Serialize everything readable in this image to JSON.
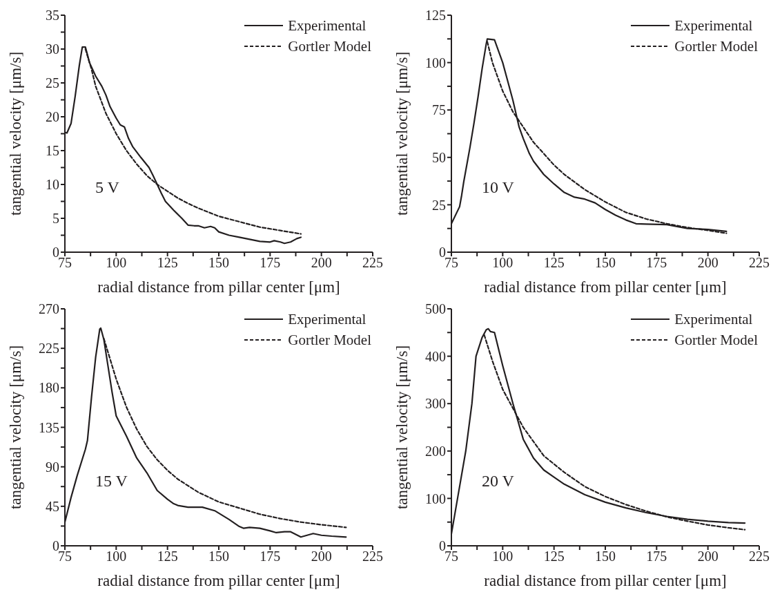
{
  "chart_data": [
    {
      "type": "line",
      "xlabel": "radial distance from pillar center [μm]",
      "ylabel": "tangential velocity [μm/s]",
      "annotations": [
        "5 V"
      ],
      "legend": "top right",
      "xlim": [
        75,
        225
      ],
      "xticks": [
        75,
        {
          "value": 87.5,
          "label": null
        },
        100,
        {
          "value": 112.5,
          "label": null
        },
        125,
        {
          "value": 137.5,
          "label": null
        },
        150,
        {
          "value": 162.5,
          "label": null
        },
        175,
        {
          "value": 187.5,
          "label": null
        },
        200,
        {
          "value": 212.5,
          "label": null
        },
        225
      ],
      "ylim": [
        0,
        35
      ],
      "yticks": [
        0,
        {
          "value": 2.5,
          "label": null
        },
        5,
        {
          "value": 7.5,
          "label": null
        },
        10,
        {
          "value": 12.5,
          "label": null
        },
        15,
        {
          "value": 17.5,
          "label": null
        },
        20,
        {
          "value": 22.5,
          "label": null
        },
        25,
        {
          "value": 27.5,
          "label": null
        },
        30,
        {
          "value": 32.5,
          "label": null
        },
        35
      ],
      "series": [
        {
          "name": "Experimental",
          "color": "#231f20",
          "line_style": "solid",
          "x": [
            75,
            76,
            78,
            80,
            82,
            83.5,
            85,
            87,
            90,
            93,
            95,
            97,
            100,
            102,
            104,
            106,
            108,
            112,
            116,
            118,
            120,
            122,
            124,
            128,
            132,
            135,
            138,
            140,
            143,
            146,
            148,
            150,
            155,
            160,
            165,
            170,
            175,
            177,
            180,
            182,
            185,
            188,
            190
          ],
          "values": [
            17.7,
            17.6,
            19,
            23,
            27.5,
            30.3,
            30.3,
            28,
            26,
            24.5,
            23.2,
            21.5,
            19.8,
            18.8,
            18.5,
            16.8,
            15.6,
            14,
            12.5,
            11.3,
            10,
            8.7,
            7.5,
            6.2,
            5,
            4,
            3.9,
            3.9,
            3.6,
            3.8,
            3.6,
            3,
            2.5,
            2.2,
            1.9,
            1.6,
            1.5,
            1.7,
            1.5,
            1.3,
            1.5,
            2,
            2.2
          ]
        },
        {
          "name": "Gortler Model",
          "color": "#231f20",
          "line_style": "dashed",
          "x": [
            85,
            88,
            90,
            95,
            100,
            105,
            110,
            115,
            120,
            125,
            130,
            135,
            140,
            145,
            150,
            160,
            170,
            180,
            190
          ],
          "values": [
            30,
            27,
            24.5,
            20.5,
            17.5,
            15,
            13,
            11.3,
            10,
            9,
            8,
            7.2,
            6.5,
            5.9,
            5.3,
            4.5,
            3.7,
            3.2,
            2.7
          ]
        }
      ]
    },
    {
      "type": "line",
      "xlabel": "radial distance from pillar center [μm]",
      "ylabel": "tangential velocity [μm/s]",
      "annotations": [
        "10 V"
      ],
      "legend": "top right",
      "xlim": [
        75,
        225
      ],
      "xticks": [
        75,
        {
          "value": 87.5,
          "label": null
        },
        100,
        {
          "value": 112.5,
          "label": null
        },
        125,
        {
          "value": 137.5,
          "label": null
        },
        150,
        {
          "value": 162.5,
          "label": null
        },
        175,
        {
          "value": 187.5,
          "label": null
        },
        200,
        {
          "value": 212.5,
          "label": null
        },
        225
      ],
      "ylim": [
        0,
        125
      ],
      "yticks": [
        0,
        {
          "value": 12.5,
          "label": null
        },
        25,
        {
          "value": 37.5,
          "label": null
        },
        50,
        {
          "value": 62.5,
          "label": null
        },
        75,
        {
          "value": 87.5,
          "label": null
        },
        100,
        {
          "value": 112.5,
          "label": null
        },
        125
      ],
      "series": [
        {
          "name": "Experimental",
          "color": "#231f20",
          "line_style": "solid",
          "x": [
            75,
            79,
            80,
            81,
            82,
            84,
            86,
            88,
            90,
            92,
            92.5,
            96,
            98,
            100,
            102,
            105,
            108,
            110,
            113,
            115,
            120,
            125,
            130,
            135,
            140,
            145,
            150,
            155,
            160,
            165,
            170,
            180,
            190,
            200,
            209
          ],
          "values": [
            15,
            24,
            30,
            37,
            43,
            55,
            68,
            82,
            97,
            110,
            112.5,
            112,
            106,
            100,
            92,
            80,
            66,
            60,
            52,
            48,
            41,
            36,
            31.5,
            29,
            28,
            26,
            22.5,
            19.5,
            17,
            15,
            14.8,
            14.5,
            12.5,
            12,
            11
          ]
        },
        {
          "name": "Gortler Model",
          "color": "#231f20",
          "line_style": "dashed",
          "x": [
            92.5,
            95,
            100,
            105,
            110,
            115,
            120,
            125,
            130,
            140,
            150,
            160,
            170,
            180,
            190,
            200,
            209
          ],
          "values": [
            111,
            100,
            85,
            74,
            66,
            58,
            52,
            46,
            41,
            33,
            26.5,
            21,
            17.5,
            15,
            13,
            11.5,
            10
          ]
        }
      ]
    },
    {
      "type": "line",
      "xlabel": "radial distance from pillar center [μm]",
      "ylabel": "tangential velocity [μm/s]",
      "annotations": [
        "15 V"
      ],
      "legend": "top right",
      "xlim": [
        75,
        225
      ],
      "xticks": [
        75,
        {
          "value": 87.5,
          "label": null
        },
        100,
        {
          "value": 112.5,
          "label": null
        },
        125,
        {
          "value": 137.5,
          "label": null
        },
        150,
        {
          "value": 162.5,
          "label": null
        },
        175,
        {
          "value": 187.5,
          "label": null
        },
        200,
        {
          "value": 212.5,
          "label": null
        },
        225
      ],
      "ylim": [
        0,
        270
      ],
      "yticks": [
        0,
        {
          "value": 22.5,
          "label": null
        },
        45,
        {
          "value": 67.5,
          "label": null
        },
        90,
        {
          "value": 112.5,
          "label": null
        },
        135,
        {
          "value": 157.5,
          "label": null
        },
        180,
        {
          "value": 202.5,
          "label": null
        },
        225,
        {
          "value": 247.5,
          "label": null
        },
        270
      ],
      "series": [
        {
          "name": "Experimental",
          "color": "#231f20",
          "line_style": "solid",
          "x": [
            75,
            78,
            81,
            85,
            86,
            88,
            90,
            92,
            92.5,
            94,
            96,
            98,
            100,
            105,
            110,
            115,
            117,
            120,
            125,
            128,
            130,
            135,
            142,
            148,
            155,
            160,
            162,
            165,
            170,
            175,
            178,
            182,
            185,
            190,
            196,
            200,
            205,
            212
          ],
          "values": [
            27,
            55,
            80,
            110,
            120,
            170,
            215,
            247,
            248,
            235,
            205,
            175,
            148,
            125,
            100,
            83,
            75,
            63,
            53,
            48,
            46,
            44,
            44,
            40,
            30,
            22,
            20,
            21,
            20,
            17,
            15,
            16,
            16,
            10,
            14,
            12,
            11,
            10
          ]
        },
        {
          "name": "Gortler Model",
          "color": "#231f20",
          "line_style": "dashed",
          "x": [
            94,
            100,
            105,
            110,
            115,
            120,
            125,
            130,
            140,
            150,
            160,
            170,
            180,
            190,
            200,
            212
          ],
          "values": [
            236,
            190,
            158,
            133,
            113,
            98,
            86,
            76,
            61,
            50,
            43,
            36,
            31,
            27,
            24,
            21
          ]
        }
      ]
    },
    {
      "type": "line",
      "xlabel": "radial distance from pillar center [μm]",
      "ylabel": "tangential velocity [μm/s]",
      "annotations": [
        "20 V"
      ],
      "legend": "top right",
      "xlim": [
        75,
        225
      ],
      "xticks": [
        75,
        {
          "value": 87.5,
          "label": null
        },
        100,
        {
          "value": 112.5,
          "label": null
        },
        125,
        {
          "value": 137.5,
          "label": null
        },
        150,
        {
          "value": 162.5,
          "label": null
        },
        175,
        {
          "value": 187.5,
          "label": null
        },
        200,
        {
          "value": 212.5,
          "label": null
        },
        225
      ],
      "ylim": [
        0,
        500
      ],
      "yticks": [
        0,
        {
          "value": 50,
          "label": null
        },
        100,
        {
          "value": 150,
          "label": null
        },
        200,
        {
          "value": 250,
          "label": null
        },
        300,
        {
          "value": 350,
          "label": null
        },
        400,
        {
          "value": 450,
          "label": null
        },
        500
      ],
      "series": [
        {
          "name": "Experimental",
          "color": "#231f20",
          "line_style": "solid",
          "x": [
            75,
            78,
            82,
            85,
            87,
            90,
            92,
            93,
            94,
            96,
            100,
            105,
            110,
            115,
            120,
            125,
            130,
            140,
            150,
            160,
            170,
            180,
            190,
            200,
            210,
            218
          ],
          "values": [
            25,
            100,
            200,
            300,
            400,
            440,
            456,
            458,
            452,
            450,
            380,
            300,
            225,
            185,
            160,
            145,
            130,
            108,
            92,
            80,
            70,
            62,
            56,
            52,
            49,
            48
          ]
        },
        {
          "name": "Gortler Model",
          "color": "#231f20",
          "line_style": "dashed",
          "x": [
            91,
            95,
            100,
            105,
            110,
            115,
            120,
            130,
            140,
            150,
            160,
            170,
            180,
            190,
            200,
            210,
            218
          ],
          "values": [
            445,
            390,
            330,
            290,
            250,
            220,
            190,
            155,
            125,
            104,
            87,
            73,
            61,
            52,
            44,
            38,
            34
          ]
        }
      ]
    }
  ]
}
